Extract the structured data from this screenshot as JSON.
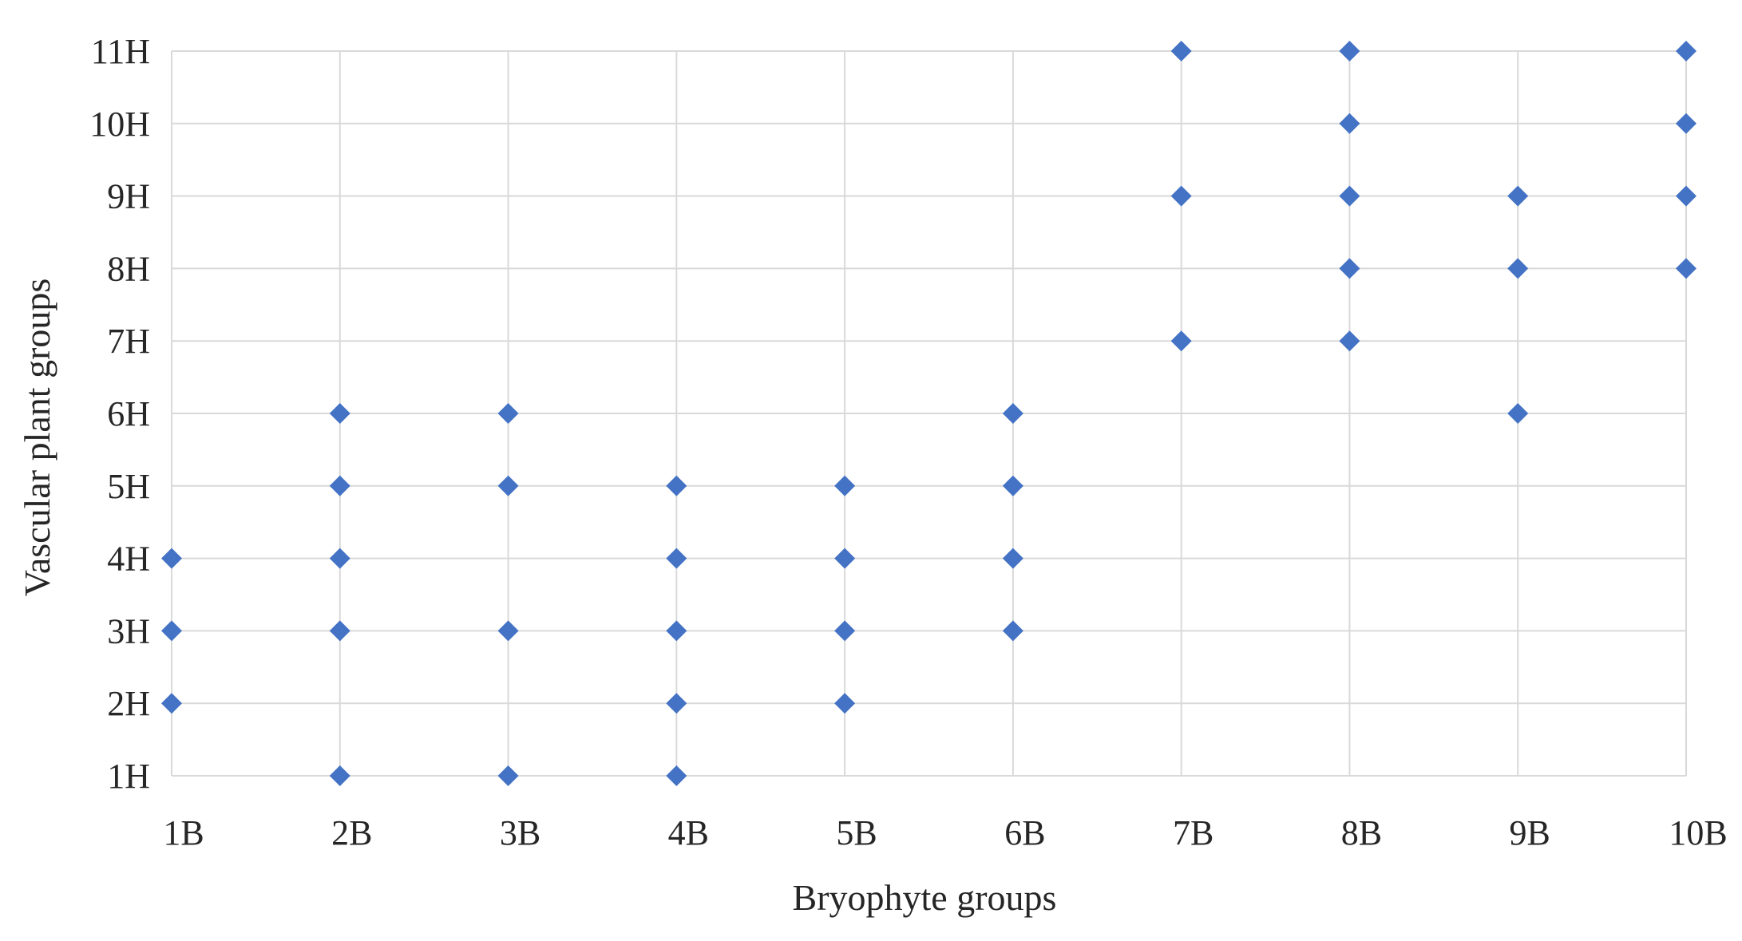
{
  "chart_data": {
    "type": "scatter",
    "title": "",
    "xlabel": "Bryophyte groups",
    "ylabel": "Vascular plant groups",
    "x_categories": [
      "1B",
      "2B",
      "3B",
      "4B",
      "5B",
      "6B",
      "7B",
      "8B",
      "9B",
      "10B"
    ],
    "y_categories": [
      "1H",
      "2H",
      "3H",
      "4H",
      "5H",
      "6H",
      "7H",
      "8H",
      "9H",
      "10H",
      "11H"
    ],
    "grid": true,
    "legend": "none",
    "marker": "diamond",
    "color": "#4472c4",
    "series": [
      {
        "points": [
          {
            "x": "1B",
            "y": "2H"
          },
          {
            "x": "1B",
            "y": "3H"
          },
          {
            "x": "1B",
            "y": "4H"
          },
          {
            "x": "2B",
            "y": "1H"
          },
          {
            "x": "2B",
            "y": "3H"
          },
          {
            "x": "2B",
            "y": "4H"
          },
          {
            "x": "2B",
            "y": "5H"
          },
          {
            "x": "2B",
            "y": "6H"
          },
          {
            "x": "3B",
            "y": "1H"
          },
          {
            "x": "3B",
            "y": "3H"
          },
          {
            "x": "3B",
            "y": "5H"
          },
          {
            "x": "3B",
            "y": "6H"
          },
          {
            "x": "4B",
            "y": "1H"
          },
          {
            "x": "4B",
            "y": "2H"
          },
          {
            "x": "4B",
            "y": "3H"
          },
          {
            "x": "4B",
            "y": "4H"
          },
          {
            "x": "4B",
            "y": "5H"
          },
          {
            "x": "5B",
            "y": "2H"
          },
          {
            "x": "5B",
            "y": "3H"
          },
          {
            "x": "5B",
            "y": "4H"
          },
          {
            "x": "5B",
            "y": "5H"
          },
          {
            "x": "6B",
            "y": "3H"
          },
          {
            "x": "6B",
            "y": "4H"
          },
          {
            "x": "6B",
            "y": "5H"
          },
          {
            "x": "6B",
            "y": "6H"
          },
          {
            "x": "7B",
            "y": "7H"
          },
          {
            "x": "7B",
            "y": "9H"
          },
          {
            "x": "7B",
            "y": "11H"
          },
          {
            "x": "8B",
            "y": "7H"
          },
          {
            "x": "8B",
            "y": "8H"
          },
          {
            "x": "8B",
            "y": "9H"
          },
          {
            "x": "8B",
            "y": "10H"
          },
          {
            "x": "8B",
            "y": "11H"
          },
          {
            "x": "9B",
            "y": "6H"
          },
          {
            "x": "9B",
            "y": "8H"
          },
          {
            "x": "9B",
            "y": "9H"
          },
          {
            "x": "10B",
            "y": "8H"
          },
          {
            "x": "10B",
            "y": "9H"
          },
          {
            "x": "10B",
            "y": "10H"
          },
          {
            "x": "10B",
            "y": "11H"
          }
        ]
      }
    ]
  }
}
